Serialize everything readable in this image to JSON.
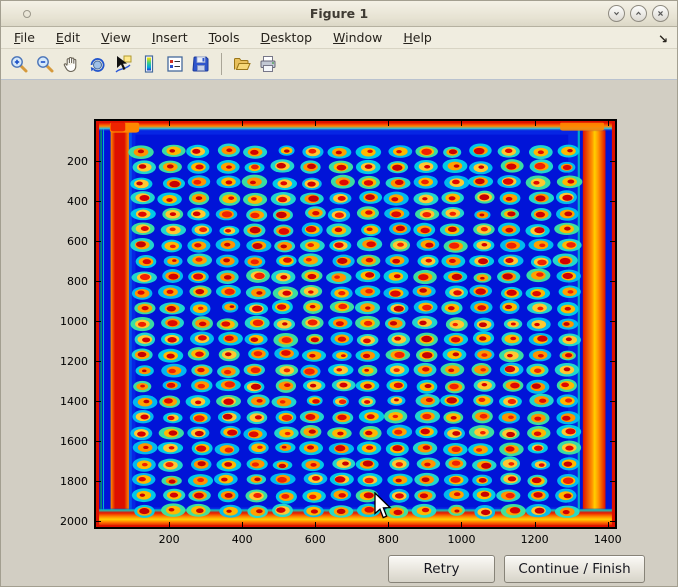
{
  "window": {
    "title": "Figure 1",
    "controls": [
      {
        "name": "minimize"
      },
      {
        "name": "maximize"
      },
      {
        "name": "close"
      }
    ]
  },
  "menu": {
    "items": [
      "File",
      "Edit",
      "View",
      "Insert",
      "Tools",
      "Desktop",
      "Window",
      "Help"
    ]
  },
  "toolbar": {
    "buttons": [
      {
        "name": "zoom-in"
      },
      {
        "name": "zoom-out"
      },
      {
        "name": "pan"
      },
      {
        "name": "rotate-3d"
      },
      {
        "name": "data-cursor"
      },
      {
        "name": "colorbar"
      },
      {
        "name": "legend"
      },
      {
        "name": "save"
      },
      {
        "name": "separator",
        "type": "separator"
      },
      {
        "name": "open"
      },
      {
        "name": "print"
      }
    ]
  },
  "dialog_buttons": {
    "retry": "Retry",
    "continue_finish": "Continue / Finish"
  },
  "chart_data": {
    "type": "heatmap",
    "title": "",
    "xlabel": "",
    "ylabel": "",
    "xlim": [
      0,
      1420
    ],
    "ylim": [
      0,
      2030
    ],
    "y_direction": "reverse",
    "xticks": [
      200,
      400,
      600,
      800,
      1000,
      1200,
      1400
    ],
    "yticks": [
      200,
      400,
      600,
      800,
      1000,
      1200,
      1400,
      1600,
      1800,
      2000
    ],
    "colormap": "jet",
    "grid_on": false,
    "box_on": true,
    "description": "Intensity scan of a 384-well microplate: 16 columns x 24 rows of wells on a deep blue background; each well has a red core, yellow-orange ring and cyan halo; plate edges and a left-side vertical stripe are saturated red/orange.",
    "grid": {
      "rows": 24,
      "cols": 16,
      "x0": 130,
      "dx": 77.3,
      "y0": 152,
      "dy": 78.2
    },
    "spot": {
      "halo_rx": 27,
      "halo_ry": 30,
      "ring_rx": 20,
      "ring_ry": 22,
      "core_rx": 10.5,
      "core_ry": 12
    },
    "colors": {
      "background": "#0114d8",
      "field_frame": "#0c35f0",
      "edge_red": "#dd1000",
      "edge_dark_red": "#b80000",
      "edge_orange": "#ff8800",
      "edge_yellow": "#ffd000",
      "edge_cyan": "#00d0c8",
      "edge_green": "#00b058",
      "halo": [
        "#00d4e8",
        "#22e0cc",
        "#3ce8a0",
        "#00c2f0"
      ],
      "ring": [
        "#ffb800",
        "#ffa200",
        "#ffc830",
        "#ff9400"
      ],
      "core": [
        "#e00800",
        "#d40000",
        "#f22000",
        "#c80000"
      ]
    }
  }
}
